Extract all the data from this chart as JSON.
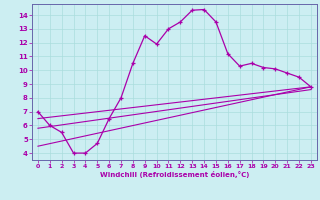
{
  "xlabel": "Windchill (Refroidissement éolien,°C)",
  "background_color": "#cceef2",
  "line_color": "#aa00aa",
  "grid_color": "#aadddd",
  "xlim": [
    -0.5,
    23.5
  ],
  "ylim": [
    3.5,
    14.8
  ],
  "yticks": [
    4,
    5,
    6,
    7,
    8,
    9,
    10,
    11,
    12,
    13,
    14
  ],
  "xticks": [
    0,
    1,
    2,
    3,
    4,
    5,
    6,
    7,
    8,
    9,
    10,
    11,
    12,
    13,
    14,
    15,
    16,
    17,
    18,
    19,
    20,
    21,
    22,
    23
  ],
  "main_x": [
    0,
    1,
    2,
    3,
    4,
    5,
    6,
    7,
    8,
    9,
    10,
    11,
    12,
    13,
    14,
    15,
    16,
    17,
    18,
    19,
    20,
    21,
    22,
    23
  ],
  "main_y": [
    7.0,
    6.0,
    5.5,
    4.0,
    4.0,
    4.7,
    6.5,
    8.0,
    10.5,
    12.5,
    11.9,
    13.0,
    13.5,
    14.35,
    14.4,
    13.5,
    11.2,
    10.3,
    10.5,
    10.2,
    10.1,
    9.8,
    9.5,
    8.8
  ],
  "trend_lines": [
    {
      "x": [
        0,
        23
      ],
      "y": [
        6.5,
        8.8
      ]
    },
    {
      "x": [
        0,
        23
      ],
      "y": [
        5.8,
        8.6
      ]
    },
    {
      "x": [
        0,
        23
      ],
      "y": [
        4.5,
        8.8
      ]
    }
  ]
}
